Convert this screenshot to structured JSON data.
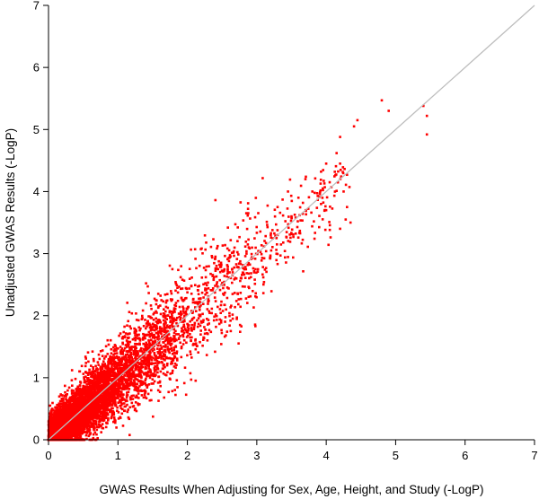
{
  "chart_data": {
    "type": "scatter",
    "xlabel": "GWAS Results When Adjusting for Sex, Age, Height, and Study  (-LogP)",
    "ylabel": "Unadjusted GWAS Results (-LogP)",
    "xlim": [
      0,
      7
    ],
    "ylim": [
      0,
      7
    ],
    "x_ticks": [
      "0",
      "1",
      "2",
      "3",
      "4",
      "5",
      "6",
      "7"
    ],
    "y_ticks": [
      "0",
      "1",
      "2",
      "3",
      "4",
      "5",
      "6",
      "7"
    ],
    "grid": false,
    "reference_line": {
      "from": [
        0,
        0
      ],
      "to": [
        7,
        7
      ],
      "color": "#bdbdbd"
    },
    "point_color": "#ff0000",
    "cloud_description_points": [
      [
        0.0,
        0.0
      ],
      [
        0.3,
        0.3
      ],
      [
        0.6,
        0.6
      ],
      [
        1.0,
        1.0
      ],
      [
        1.5,
        1.5
      ],
      [
        2.0,
        2.0
      ],
      [
        2.5,
        2.4
      ],
      [
        3.0,
        2.9
      ]
    ],
    "highlighted_points": [
      [
        4.8,
        5.47
      ],
      [
        4.9,
        5.3
      ],
      [
        4.45,
        5.15
      ],
      [
        4.4,
        5.05
      ],
      [
        5.4,
        5.38
      ],
      [
        5.45,
        5.22
      ],
      [
        5.45,
        4.92
      ],
      [
        4.2,
        4.88
      ],
      [
        4.15,
        4.62
      ],
      [
        4.2,
        4.45
      ],
      [
        4.0,
        4.45
      ],
      [
        4.05,
        4.15
      ],
      [
        3.7,
        4.2
      ],
      [
        3.95,
        4.05
      ],
      [
        4.25,
        4.0
      ],
      [
        4.3,
        3.75
      ],
      [
        4.0,
        3.7
      ],
      [
        4.35,
        3.5
      ],
      [
        4.2,
        3.4
      ],
      [
        3.8,
        4.0
      ],
      [
        3.6,
        3.9
      ],
      [
        3.5,
        3.6
      ],
      [
        3.3,
        3.75
      ],
      [
        3.45,
        4.0
      ]
    ]
  }
}
